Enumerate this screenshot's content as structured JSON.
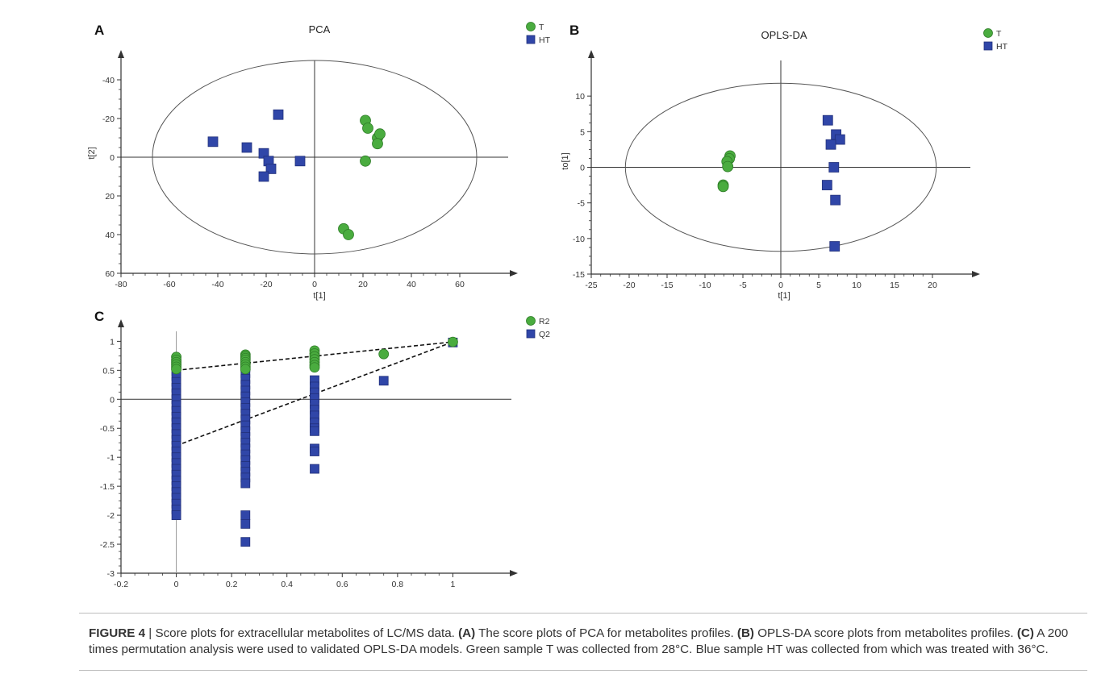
{
  "colors": {
    "T": "#4aac3f",
    "HT": "#3046a8",
    "axis": "#333333",
    "ellipse": "#555555"
  },
  "chart_data": [
    {
      "type": "scatter",
      "panel": "A",
      "title": "PCA",
      "xlabel": "t[1]",
      "ylabel": "t[2]",
      "xlim": [
        -80,
        80
      ],
      "ylim": [
        60,
        -50
      ],
      "y_inverted": true,
      "xticks": [
        "-80",
        "-60",
        "-40",
        "-20",
        "0",
        "20",
        "40",
        "60"
      ],
      "yticks": [
        "-40",
        "-20",
        "0",
        "20",
        "40",
        "60"
      ],
      "ellipse": {
        "cx": 0,
        "cy": 0,
        "rx": 67,
        "ry": 50
      },
      "legend": [
        "T",
        "HT"
      ],
      "series": [
        {
          "name": "T",
          "marker": "circle",
          "points": [
            [
              21,
              -19
            ],
            [
              22,
              -15
            ],
            [
              26,
              -10
            ],
            [
              27,
              -12
            ],
            [
              26,
              -7
            ],
            [
              21,
              2
            ],
            [
              12,
              37
            ],
            [
              14,
              40
            ]
          ]
        },
        {
          "name": "HT",
          "marker": "square",
          "points": [
            [
              -42,
              -8
            ],
            [
              -28,
              -5
            ],
            [
              -15,
              -22
            ],
            [
              -21,
              -2
            ],
            [
              -19,
              2
            ],
            [
              -18,
              6
            ],
            [
              -21,
              10
            ],
            [
              -6,
              2
            ]
          ]
        }
      ]
    },
    {
      "type": "scatter",
      "panel": "B",
      "title": "OPLS-DA",
      "xlabel": "t[1]",
      "ylabel": "to[1]",
      "xlim": [
        -25,
        25
      ],
      "ylim": [
        -15,
        15
      ],
      "xticks": [
        "-25",
        "-20",
        "-15",
        "-10",
        "-5",
        "0",
        "5",
        "10",
        "15",
        "20"
      ],
      "yticks": [
        "-15",
        "-10",
        "-5",
        "0",
        "5",
        "10"
      ],
      "ellipse": {
        "cx": 0,
        "cy": 0,
        "rx": 20.5,
        "ry": 11.8
      },
      "legend": [
        "T",
        "HT"
      ],
      "series": [
        {
          "name": "T",
          "marker": "circle",
          "points": [
            [
              -6.7,
              1.6
            ],
            [
              -6.8,
              1.2
            ],
            [
              -7.1,
              0.8
            ],
            [
              -7,
              0.1
            ],
            [
              -7.6,
              -2.5
            ],
            [
              -7.6,
              -2.7
            ]
          ]
        },
        {
          "name": "HT",
          "marker": "square",
          "points": [
            [
              6.2,
              6.6
            ],
            [
              7.3,
              4.6
            ],
            [
              7.8,
              3.9
            ],
            [
              6.6,
              3.2
            ],
            [
              7,
              0
            ],
            [
              6.1,
              -2.5
            ],
            [
              7.2,
              -4.6
            ],
            [
              7.1,
              -11.1
            ]
          ]
        }
      ]
    },
    {
      "type": "scatter",
      "panel": "C",
      "title": "",
      "xlabel": "",
      "ylabel": "",
      "xlim": [
        -0.2,
        1.2
      ],
      "ylim": [
        -3,
        1.2
      ],
      "xticks": [
        "-0.2",
        "0",
        "0.2",
        "0.4",
        "0.6",
        "0.8",
        "1"
      ],
      "yticks": [
        "-3",
        "-2.5",
        "-2",
        "-1.5",
        "-1",
        "-0.5",
        "0",
        "0.5",
        "1"
      ],
      "legend": [
        "R2",
        "Q2"
      ],
      "series": [
        {
          "name": "R2",
          "marker": "circle",
          "points": [
            [
              0,
              0.73
            ],
            [
              0,
              0.68
            ],
            [
              0,
              0.64
            ],
            [
              0,
              0.6
            ],
            [
              0,
              0.56
            ],
            [
              0,
              0.52
            ],
            [
              0.25,
              0.77
            ],
            [
              0.25,
              0.74
            ],
            [
              0.25,
              0.71
            ],
            [
              0.25,
              0.68
            ],
            [
              0.25,
              0.64
            ],
            [
              0.25,
              0.6
            ],
            [
              0.25,
              0.56
            ],
            [
              0.25,
              0.52
            ],
            [
              0.5,
              0.84
            ],
            [
              0.5,
              0.79
            ],
            [
              0.5,
              0.74
            ],
            [
              0.5,
              0.69
            ],
            [
              0.5,
              0.64
            ],
            [
              0.5,
              0.59
            ],
            [
              0.5,
              0.55
            ],
            [
              0.75,
              0.78
            ],
            [
              1,
              0.99
            ]
          ]
        },
        {
          "name": "Q2",
          "marker": "square",
          "points": [
            [
              0,
              0.48
            ],
            [
              0,
              0.4
            ],
            [
              0,
              0.3
            ],
            [
              0,
              0.2
            ],
            [
              0,
              0.1
            ],
            [
              0,
              0
            ],
            [
              0,
              -0.1
            ],
            [
              0,
              -0.2
            ],
            [
              0,
              -0.3
            ],
            [
              0,
              -0.4
            ],
            [
              0,
              -0.5
            ],
            [
              0,
              -0.6
            ],
            [
              0,
              -0.7
            ],
            [
              0,
              -0.8
            ],
            [
              0,
              -0.9
            ],
            [
              0,
              -1
            ],
            [
              0,
              -1.1
            ],
            [
              0,
              -1.2
            ],
            [
              0,
              -1.3
            ],
            [
              0,
              -1.4
            ],
            [
              0,
              -1.5
            ],
            [
              0,
              -1.6
            ],
            [
              0,
              -1.7
            ],
            [
              0,
              -1.8
            ],
            [
              0,
              -1.9
            ],
            [
              0,
              -2
            ],
            [
              0.25,
              0.55
            ],
            [
              0.25,
              0.45
            ],
            [
              0.25,
              0.35
            ],
            [
              0.25,
              0.25
            ],
            [
              0.25,
              0.15
            ],
            [
              0.25,
              0.05
            ],
            [
              0.25,
              -0.05
            ],
            [
              0.25,
              -0.15
            ],
            [
              0.25,
              -0.25
            ],
            [
              0.25,
              -0.35
            ],
            [
              0.25,
              -0.45
            ],
            [
              0.25,
              -0.55
            ],
            [
              0.25,
              -0.65
            ],
            [
              0.25,
              -0.75
            ],
            [
              0.25,
              -0.85
            ],
            [
              0.25,
              -0.95
            ],
            [
              0.25,
              -1.05
            ],
            [
              0.25,
              -1.15
            ],
            [
              0.25,
              -1.25
            ],
            [
              0.25,
              -1.35
            ],
            [
              0.25,
              -1.45
            ],
            [
              0.25,
              -2
            ],
            [
              0.25,
              -2.15
            ],
            [
              0.25,
              -2.46
            ],
            [
              0.5,
              0.33
            ],
            [
              0.5,
              0.22
            ],
            [
              0.5,
              0.12
            ],
            [
              0.5,
              0.02
            ],
            [
              0.5,
              -0.08
            ],
            [
              0.5,
              -0.18
            ],
            [
              0.5,
              -0.28
            ],
            [
              0.5,
              -0.4
            ],
            [
              0.5,
              -0.5
            ],
            [
              0.5,
              -0.55
            ],
            [
              0.5,
              -0.85
            ],
            [
              0.5,
              -0.9
            ],
            [
              0.5,
              -1.2
            ],
            [
              0.75,
              0.32
            ],
            [
              1,
              0.98
            ]
          ]
        }
      ],
      "regression_lines": [
        {
          "name": "R2",
          "from": [
            0,
            0.5
          ],
          "to": [
            1,
            0.99
          ]
        },
        {
          "name": "Q2",
          "from": [
            0,
            -0.8
          ],
          "to": [
            1,
            0.99
          ]
        }
      ]
    }
  ],
  "caption": {
    "figure_label": "FIGURE 4",
    "separator": "|",
    "intro": " Score plots for extracellular metabolites of LC/MS data. ",
    "a_label": "(A)",
    "a_text": " The score plots of PCA for metabolites profiles. ",
    "b_label": "(B)",
    "b_text": " OPLS-DA score plots from metabolites profiles. ",
    "c_label": "(C)",
    "c_text": " A 200 times permutation analysis were used to validated OPLS-DA models. Green sample T was collected from 28°C. Blue sample HT was collected from which was treated with 36°C."
  }
}
